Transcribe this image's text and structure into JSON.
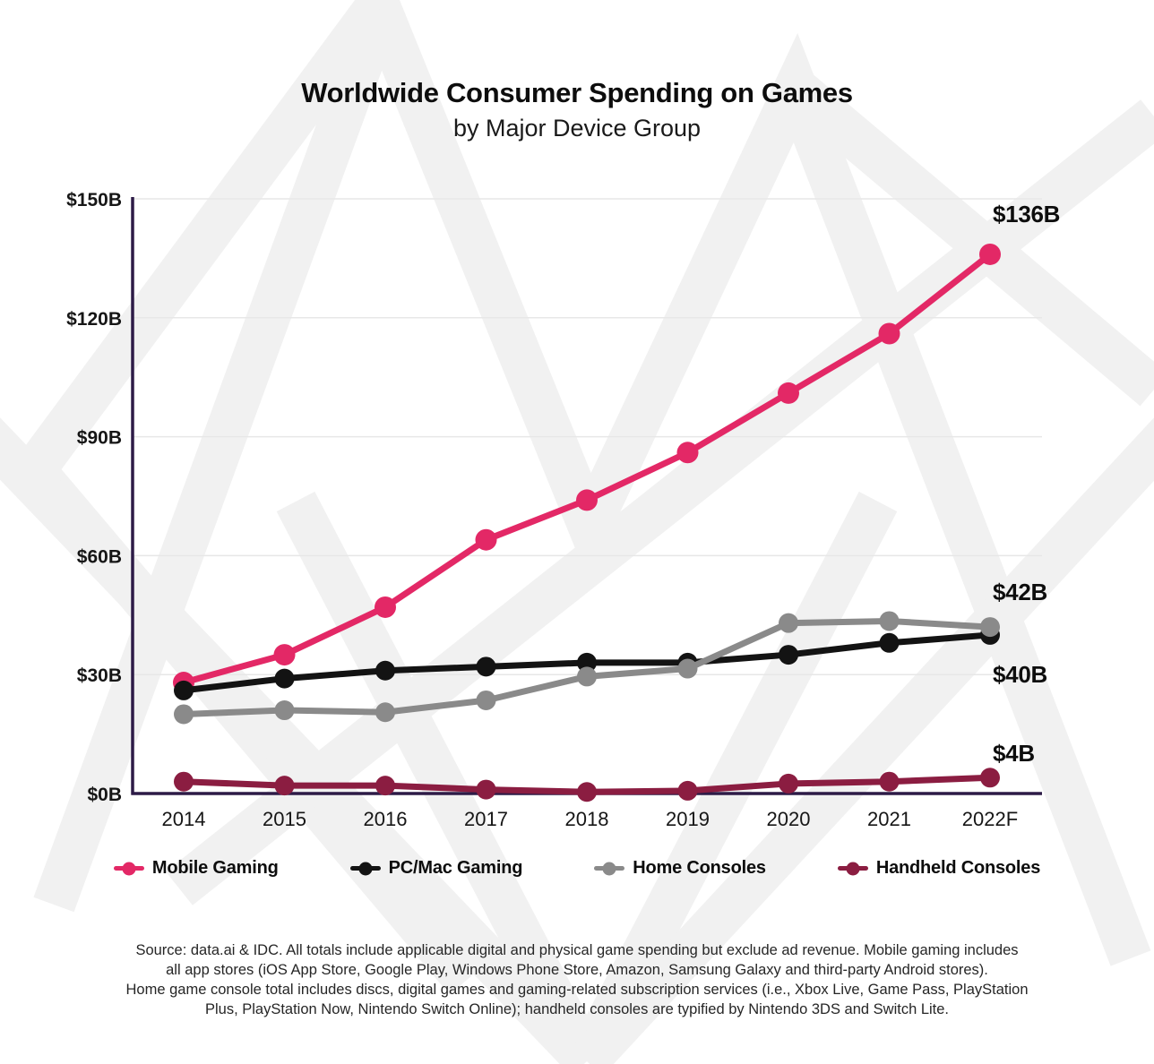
{
  "header": {
    "title": "Worldwide Consumer Spending on Games",
    "subtitle": "by Major Device Group"
  },
  "chart_data": {
    "type": "line",
    "title": "Worldwide Consumer Spending on Games by Major Device Group",
    "categories": [
      "2014",
      "2015",
      "2016",
      "2017",
      "2018",
      "2019",
      "2020",
      "2021",
      "2022F"
    ],
    "series": [
      {
        "name": "Mobile Gaming",
        "color": "#E32866",
        "values": [
          28,
          35,
          47,
          64,
          74,
          86,
          101,
          116,
          136
        ]
      },
      {
        "name": "PC/Mac Gaming",
        "color": "#131313",
        "values": [
          26,
          29,
          31,
          32,
          33,
          33,
          35,
          38,
          40
        ]
      },
      {
        "name": "Home Consoles",
        "color": "#8A8A8A",
        "values": [
          20,
          21,
          20.5,
          23.5,
          29.5,
          31.5,
          43,
          43.5,
          42
        ]
      },
      {
        "name": "Handheld Consoles",
        "color": "#8B1D41",
        "values": [
          3,
          2,
          2,
          1,
          0.4,
          0.7,
          2.5,
          3,
          4
        ]
      }
    ],
    "y_ticks": [
      {
        "label": "$150B",
        "value": 150
      },
      {
        "label": "$120B",
        "value": 120
      },
      {
        "label": "$90B",
        "value": 90
      },
      {
        "label": "$60B",
        "value": 60
      },
      {
        "label": "$30B",
        "value": 30
      },
      {
        "label": "$0B",
        "value": 0
      }
    ],
    "ylim": [
      0,
      150
    ],
    "grid": "horizontal",
    "legend_position": "bottom",
    "end_labels": [
      {
        "series": "Mobile Gaming",
        "text": "$136B"
      },
      {
        "series": "Home Consoles",
        "text": "$42B"
      },
      {
        "series": "PC/Mac Gaming",
        "text": "$40B"
      },
      {
        "series": "Handheld Consoles",
        "text": "$4B"
      }
    ],
    "colors": {
      "axis": "#2D1B47",
      "gridline": "#E7E7E7",
      "watermark": "#F1F1F1",
      "tick_text": "#161616"
    }
  },
  "footer": {
    "lines": [
      "Source: data.ai & IDC. All totals include applicable digital and physical game spending but exclude ad revenue. Mobile gaming includes",
      "all app stores (iOS App Store, Google Play, Windows Phone Store, Amazon, Samsung Galaxy and third-party Android stores).",
      "Home game console total includes discs, digital games and gaming-related subscription services (i.e., Xbox Live, Game Pass, PlayStation",
      "Plus, PlayStation Now, Nintendo Switch Online); handheld consoles are typified by Nintendo 3DS and Switch Lite."
    ]
  }
}
